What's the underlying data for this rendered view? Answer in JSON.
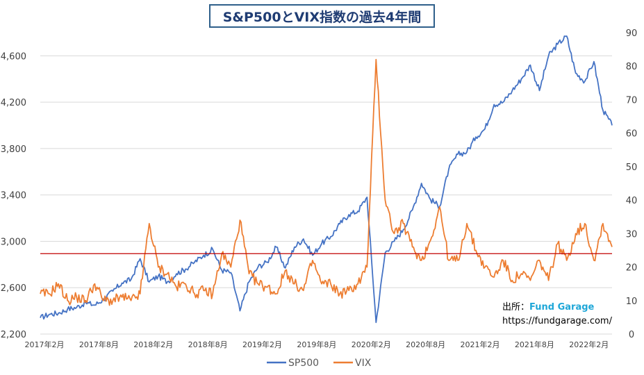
{
  "chart_data": {
    "type": "line",
    "title": "S&P500とVIX指数の過去4年間",
    "grid": true,
    "legend_position": "bottom",
    "x_tick_labels": [
      "2017年2月",
      "2017年8月",
      "2018年2月",
      "2018年8月",
      "2019年2月",
      "2019年8月",
      "2020年2月",
      "2020年8月",
      "2021年2月",
      "2021年8月",
      "2022年2月"
    ],
    "x_range": [
      "2017-02",
      "2022-05"
    ],
    "y_left": {
      "lim": [
        2200,
        4800
      ],
      "ticks": [
        "2,200",
        "2,600",
        "3,000",
        "3,400",
        "3,800",
        "4,200",
        "4,600"
      ],
      "tick_values": [
        2200,
        2600,
        3000,
        3400,
        3800,
        4200,
        4600
      ]
    },
    "y_right": {
      "lim": [
        0,
        90
      ],
      "ticks": [
        "0",
        "10",
        "20",
        "30",
        "40",
        "50",
        "60",
        "70",
        "80",
        "90"
      ],
      "tick_values": [
        0,
        10,
        20,
        30,
        40,
        50,
        60,
        70,
        80,
        90
      ]
    },
    "reference_line": {
      "axis": "right",
      "value": 24,
      "color": "#c00000"
    },
    "series": [
      {
        "name": "SP500",
        "axis": "left",
        "color": "#4472c4",
        "points": [
          [
            "2017-02",
            2340
          ],
          [
            "2017-03",
            2370
          ],
          [
            "2017-04",
            2380
          ],
          [
            "2017-05",
            2415
          ],
          [
            "2017-06",
            2430
          ],
          [
            "2017-07",
            2470
          ],
          [
            "2017-08",
            2450
          ],
          [
            "2017-09",
            2500
          ],
          [
            "2017-10",
            2570
          ],
          [
            "2017-11",
            2640
          ],
          [
            "2017-12",
            2670
          ],
          [
            "2018-01",
            2850
          ],
          [
            "2018-02",
            2650
          ],
          [
            "2018-03",
            2700
          ],
          [
            "2018-04",
            2650
          ],
          [
            "2018-05",
            2720
          ],
          [
            "2018-06",
            2760
          ],
          [
            "2018-07",
            2820
          ],
          [
            "2018-08",
            2880
          ],
          [
            "2018-09",
            2930
          ],
          [
            "2018-10",
            2750
          ],
          [
            "2018-11",
            2730
          ],
          [
            "2018-12",
            2400
          ],
          [
            "2019-01",
            2650
          ],
          [
            "2019-02",
            2780
          ],
          [
            "2019-03",
            2820
          ],
          [
            "2019-04",
            2950
          ],
          [
            "2019-05",
            2770
          ],
          [
            "2019-06",
            2950
          ],
          [
            "2019-07",
            3020
          ],
          [
            "2019-08",
            2880
          ],
          [
            "2019-09",
            2980
          ],
          [
            "2019-10",
            3040
          ],
          [
            "2019-11",
            3150
          ],
          [
            "2019-12",
            3230
          ],
          [
            "2020-01",
            3260
          ],
          [
            "2020-02",
            3380
          ],
          [
            "2020-03",
            2300
          ],
          [
            "2020-04",
            2900
          ],
          [
            "2020-05",
            3000
          ],
          [
            "2020-06",
            3100
          ],
          [
            "2020-07",
            3270
          ],
          [
            "2020-08",
            3500
          ],
          [
            "2020-09",
            3360
          ],
          [
            "2020-10",
            3300
          ],
          [
            "2020-11",
            3620
          ],
          [
            "2020-12",
            3750
          ],
          [
            "2021-01",
            3770
          ],
          [
            "2021-02",
            3900
          ],
          [
            "2021-03",
            3970
          ],
          [
            "2021-04",
            4180
          ],
          [
            "2021-05",
            4200
          ],
          [
            "2021-06",
            4300
          ],
          [
            "2021-07",
            4400
          ],
          [
            "2021-08",
            4520
          ],
          [
            "2021-09",
            4300
          ],
          [
            "2021-10",
            4600
          ],
          [
            "2021-11",
            4700
          ],
          [
            "2021-12",
            4770
          ],
          [
            "2022-01",
            4450
          ],
          [
            "2022-02",
            4380
          ],
          [
            "2022-03",
            4550
          ],
          [
            "2022-04",
            4130
          ],
          [
            "2022-05",
            4000
          ]
        ]
      },
      {
        "name": "VIX",
        "axis": "right",
        "color": "#ed7d31",
        "points": [
          [
            "2017-02",
            12
          ],
          [
            "2017-03",
            12
          ],
          [
            "2017-04",
            15
          ],
          [
            "2017-05",
            10
          ],
          [
            "2017-06",
            11
          ],
          [
            "2017-07",
            10
          ],
          [
            "2017-08",
            15
          ],
          [
            "2017-09",
            10
          ],
          [
            "2017-10",
            10
          ],
          [
            "2017-11",
            11
          ],
          [
            "2017-12",
            10
          ],
          [
            "2018-01",
            12
          ],
          [
            "2018-02",
            33
          ],
          [
            "2018-03",
            20
          ],
          [
            "2018-04",
            18
          ],
          [
            "2018-05",
            14
          ],
          [
            "2018-06",
            15
          ],
          [
            "2018-07",
            12
          ],
          [
            "2018-08",
            13
          ],
          [
            "2018-09",
            12
          ],
          [
            "2018-10",
            24
          ],
          [
            "2018-11",
            20
          ],
          [
            "2018-12",
            34
          ],
          [
            "2019-01",
            18
          ],
          [
            "2019-02",
            15
          ],
          [
            "2019-03",
            14
          ],
          [
            "2019-04",
            12
          ],
          [
            "2019-05",
            19
          ],
          [
            "2019-06",
            15
          ],
          [
            "2019-07",
            13
          ],
          [
            "2019-08",
            22
          ],
          [
            "2019-09",
            15
          ],
          [
            "2019-10",
            15
          ],
          [
            "2019-11",
            12
          ],
          [
            "2019-12",
            13
          ],
          [
            "2020-01",
            15
          ],
          [
            "2020-02",
            20
          ],
          [
            "2020-03",
            82
          ],
          [
            "2020-04",
            40
          ],
          [
            "2020-05",
            30
          ],
          [
            "2020-06",
            33
          ],
          [
            "2020-07",
            26
          ],
          [
            "2020-08",
            22
          ],
          [
            "2020-09",
            28
          ],
          [
            "2020-10",
            38
          ],
          [
            "2020-11",
            22
          ],
          [
            "2020-12",
            22
          ],
          [
            "2021-01",
            33
          ],
          [
            "2021-02",
            25
          ],
          [
            "2021-03",
            20
          ],
          [
            "2021-04",
            17
          ],
          [
            "2021-05",
            22
          ],
          [
            "2021-06",
            16
          ],
          [
            "2021-07",
            18
          ],
          [
            "2021-08",
            16
          ],
          [
            "2021-09",
            22
          ],
          [
            "2021-10",
            16
          ],
          [
            "2021-11",
            27
          ],
          [
            "2021-12",
            22
          ],
          [
            "2022-01",
            30
          ],
          [
            "2022-02",
            33
          ],
          [
            "2022-03",
            22
          ],
          [
            "2022-04",
            33
          ],
          [
            "2022-05",
            26
          ]
        ]
      }
    ]
  },
  "source": {
    "label": "出所：",
    "brand": "Fund Garage",
    "url": "https://fundgarage.com/"
  }
}
